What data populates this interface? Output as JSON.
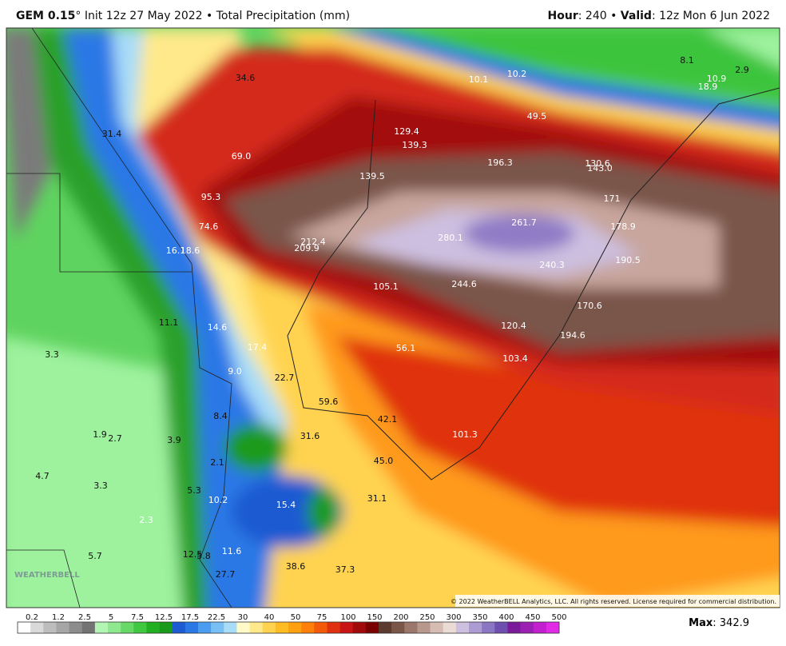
{
  "header": {
    "model": "GEM 0.15",
    "title_rest": "° Init 12z 27 May 2022 • Total Precipitation (mm)",
    "hour_key": "Hour",
    "hour_rest": ": 240 • ",
    "valid_key": "Valid",
    "valid_rest": ": 12z Mon 6 Jun 2022"
  },
  "map_labels": [
    "34.6",
    "31.4",
    "69.0",
    "95.3",
    "74.6",
    "16.1",
    "18.6",
    "212.4",
    "209.9",
    "129.4",
    "139.3",
    "139.5",
    "196.3",
    "130.6",
    "143.0",
    "171",
    "178.9",
    "190.5",
    "261.7",
    "280.1",
    "240.3",
    "244.6",
    "105.1",
    "170.6",
    "120.4",
    "194.6",
    "56.1",
    "103.4",
    "11.1",
    "14.6",
    "17.4",
    "9.0",
    "22.7",
    "59.6",
    "42.1",
    "8.4",
    "31.6",
    "101.3",
    "45.0",
    "1.9",
    "2.7",
    "3.9",
    "2.1",
    "4.7",
    "3.3",
    "5.3",
    "10.2",
    "15.4",
    "31.1",
    "2.3",
    "5.7",
    "12.5",
    "5.8",
    "11.6",
    "27.7",
    "38.6",
    "37.3",
    "3.3",
    "8.1",
    "2.9",
    "10.1",
    "10.2",
    "18.9",
    "10.9",
    "49.5"
  ],
  "logo": "WEATHERBELL",
  "copyright": "© 2022 WeatherBELL Analytics, LLC. All rights reserved. License required for commercial distribution.",
  "colorbar": {
    "labels": [
      "0.2",
      "1.2",
      "2.5",
      "5",
      "7.5",
      "12.5",
      "17.5",
      "22.5",
      "30",
      "40",
      "50",
      "75",
      "100",
      "150",
      "200",
      "250",
      "300",
      "350",
      "400",
      "450",
      "500"
    ],
    "colors": [
      "#ffffff",
      "#d9d9d9",
      "#bdbdbd",
      "#a6a6a6",
      "#8c8c8c",
      "#737373",
      "#b3f5b3",
      "#8ee88e",
      "#66d966",
      "#40c840",
      "#22b022",
      "#1a9a1a",
      "#1e5ad2",
      "#2a78e6",
      "#4a9cf0",
      "#78bff5",
      "#a8dcf8",
      "#fffac8",
      "#ffe98a",
      "#ffd34f",
      "#ffbb22",
      "#ffa010",
      "#ff7f0a",
      "#f25a0a",
      "#e03010",
      "#c81414",
      "#a00a0a",
      "#7a0000",
      "#5c3a30",
      "#7a5548",
      "#9a776a",
      "#b8988c",
      "#d6bdb3",
      "#eadbd5",
      "#cdbfe0",
      "#ad9bd4",
      "#8a76c2",
      "#6e4fb0",
      "#7a1a9a",
      "#9c1fb3",
      "#c21fcf",
      "#e02ae6"
    ]
  },
  "max": {
    "key": "Max",
    "rest": ": 342.9"
  }
}
